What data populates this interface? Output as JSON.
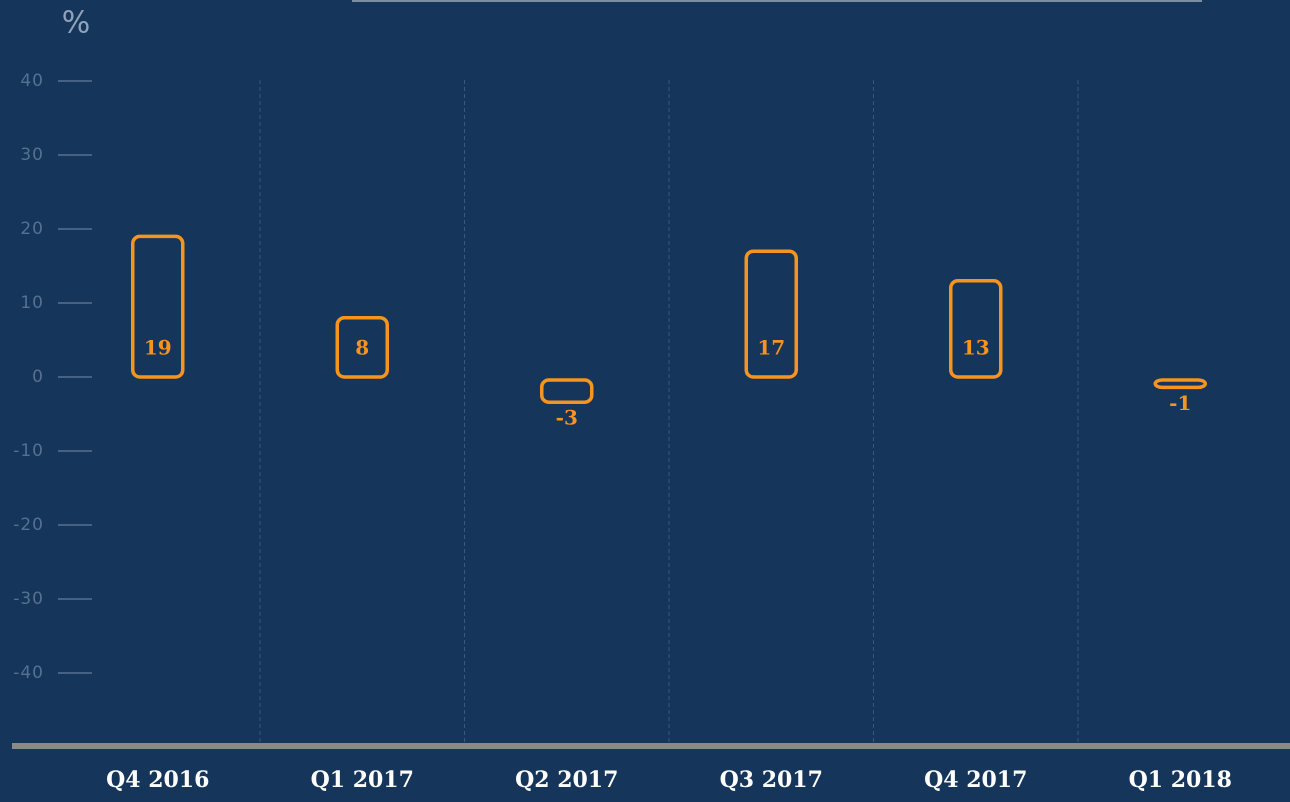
{
  "chart_data": {
    "type": "bar",
    "y_label": "%",
    "categories": [
      "Q4 2016",
      "Q1 2017",
      "Q2 2017",
      "Q3 2017",
      "Q4 2017",
      "Q1 2018"
    ],
    "values": [
      19,
      8,
      -3,
      17,
      13,
      -1
    ],
    "color": "#f7941d",
    "ylim": [
      -40,
      40
    ],
    "yticks": [
      -40,
      -30,
      -20,
      -10,
      0,
      10,
      20,
      30,
      40
    ],
    "grid": false
  }
}
